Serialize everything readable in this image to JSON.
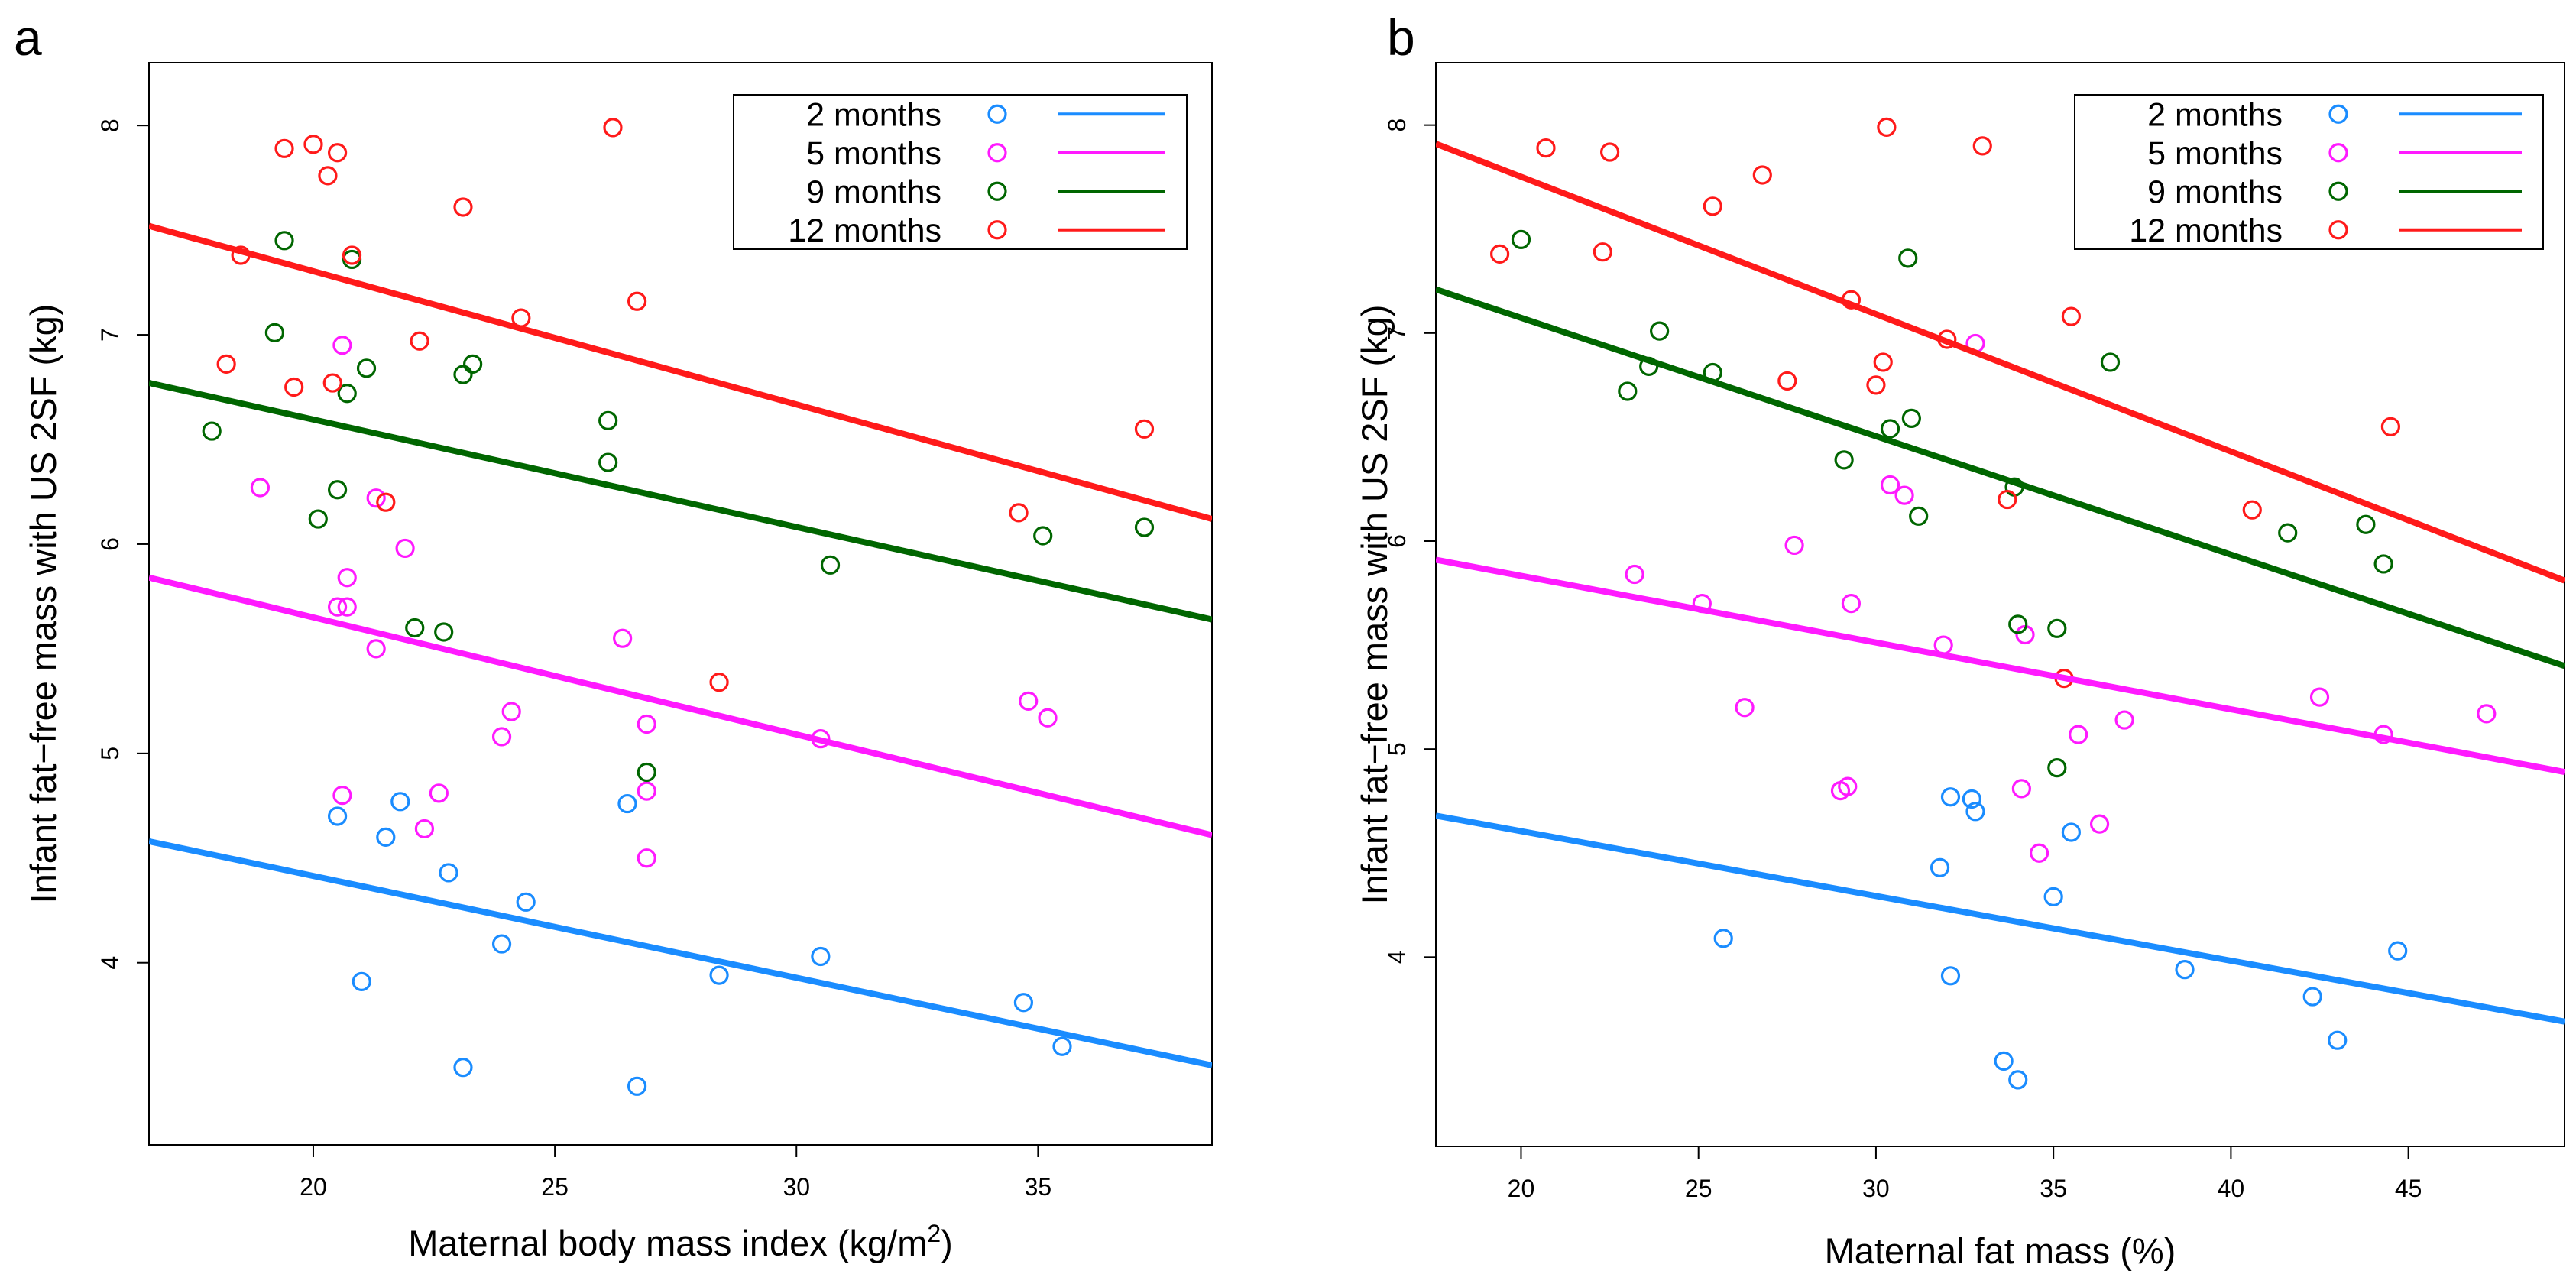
{
  "chart_data": [
    {
      "type": "scatter",
      "panel_label": "a",
      "xlabel": "Maternal body mass index (kg/m",
      "xlabel_sup": "2",
      "xlabel_end": ")",
      "ylabel": "Infant fat−free mass with US 2SF (kg)",
      "xlim": [
        16.6,
        38.6
      ],
      "ylim": [
        3.13,
        8.3
      ],
      "xticks": [
        20,
        25,
        30,
        35
      ],
      "yticks": [
        4,
        5,
        6,
        7,
        8
      ],
      "legend_position": "top-right",
      "series": [
        {
          "name": "2 months",
          "color": "#1a8cff",
          "line": {
            "x": [
              16.6,
              38.6
            ],
            "y": [
              4.58,
              3.51
            ]
          },
          "points": [
            [
              20.5,
              4.7
            ],
            [
              21.0,
              3.91
            ],
            [
              21.5,
              4.6
            ],
            [
              21.8,
              4.77
            ],
            [
              22.8,
              4.43
            ],
            [
              23.1,
              3.5
            ],
            [
              23.9,
              4.09
            ],
            [
              24.4,
              4.29
            ],
            [
              26.5,
              4.76
            ],
            [
              26.7,
              3.41
            ],
            [
              28.4,
              3.94
            ],
            [
              30.5,
              4.03
            ],
            [
              34.7,
              3.81
            ],
            [
              35.5,
              3.6
            ]
          ]
        },
        {
          "name": "5 months",
          "color": "#ff1aff",
          "line": {
            "x": [
              16.6,
              38.6
            ],
            "y": [
              5.84,
              4.61
            ]
          },
          "points": [
            [
              18.9,
              6.27
            ],
            [
              20.5,
              5.7
            ],
            [
              20.6,
              4.8
            ],
            [
              20.6,
              6.95
            ],
            [
              20.7,
              5.7
            ],
            [
              20.7,
              5.84
            ],
            [
              21.3,
              5.5
            ],
            [
              21.3,
              6.22
            ],
            [
              21.9,
              5.98
            ],
            [
              22.3,
              4.64
            ],
            [
              22.6,
              4.81
            ],
            [
              23.9,
              5.08
            ],
            [
              24.1,
              5.2
            ],
            [
              26.4,
              5.55
            ],
            [
              26.9,
              4.5
            ],
            [
              26.9,
              4.82
            ],
            [
              26.9,
              5.14
            ],
            [
              30.5,
              5.07
            ],
            [
              34.8,
              5.25
            ],
            [
              35.2,
              5.17
            ]
          ]
        },
        {
          "name": "9 months",
          "color": "#006600",
          "line": {
            "x": [
              16.6,
              38.6
            ],
            "y": [
              6.77,
              5.64
            ]
          },
          "points": [
            [
              17.9,
              6.54
            ],
            [
              19.2,
              7.01
            ],
            [
              19.4,
              7.45
            ],
            [
              20.1,
              6.12
            ],
            [
              20.5,
              6.26
            ],
            [
              20.7,
              6.72
            ],
            [
              20.8,
              7.36
            ],
            [
              21.1,
              6.84
            ],
            [
              22.1,
              5.6
            ],
            [
              22.7,
              5.58
            ],
            [
              23.1,
              6.81
            ],
            [
              23.3,
              6.86
            ],
            [
              26.1,
              6.39
            ],
            [
              26.1,
              6.59
            ],
            [
              26.9,
              4.91
            ],
            [
              30.7,
              5.9
            ],
            [
              35.1,
              6.04
            ],
            [
              37.2,
              6.08
            ]
          ]
        },
        {
          "name": "12 months",
          "color": "#ff1a1a",
          "line": {
            "x": [
              16.6,
              38.6
            ],
            "y": [
              7.52,
              6.12
            ]
          },
          "points": [
            [
              18.2,
              6.86
            ],
            [
              18.5,
              7.38
            ],
            [
              19.4,
              7.89
            ],
            [
              19.6,
              6.75
            ],
            [
              20.0,
              7.91
            ],
            [
              20.3,
              7.76
            ],
            [
              20.4,
              6.77
            ],
            [
              20.5,
              7.87
            ],
            [
              20.8,
              7.38
            ],
            [
              21.5,
              6.2
            ],
            [
              22.2,
              6.97
            ],
            [
              23.1,
              7.61
            ],
            [
              24.3,
              7.08
            ],
            [
              26.2,
              7.99
            ],
            [
              26.7,
              7.16
            ],
            [
              28.4,
              5.34
            ],
            [
              34.6,
              6.15
            ],
            [
              37.2,
              6.55
            ]
          ]
        }
      ]
    },
    {
      "type": "scatter",
      "panel_label": "b",
      "xlabel": "Maternal fat mass (%)",
      "ylabel": "Infant fat−free mass with US 2SF (kg)",
      "xlim": [
        17.6,
        49.4
      ],
      "ylim": [
        3.09,
        8.3
      ],
      "xticks": [
        20,
        25,
        30,
        35,
        40,
        45
      ],
      "yticks": [
        4,
        5,
        6,
        7,
        8
      ],
      "legend_position": "top-right",
      "series": [
        {
          "name": "2 months",
          "color": "#1a8cff",
          "line": {
            "x": [
              17.6,
              49.4
            ],
            "y": [
              4.68,
              3.69
            ]
          },
          "points": [
            [
              25.7,
              4.09
            ],
            [
              31.8,
              4.43
            ],
            [
              32.1,
              4.77
            ],
            [
              32.1,
              3.91
            ],
            [
              32.7,
              4.76
            ],
            [
              32.8,
              4.7
            ],
            [
              33.6,
              3.5
            ],
            [
              34.0,
              3.41
            ],
            [
              35.0,
              4.29
            ],
            [
              35.5,
              4.6
            ],
            [
              38.7,
              3.94
            ],
            [
              42.3,
              3.81
            ],
            [
              43.0,
              3.6
            ],
            [
              44.7,
              4.03
            ]
          ]
        },
        {
          "name": "5 months",
          "color": "#ff1aff",
          "line": {
            "x": [
              17.6,
              49.4
            ],
            "y": [
              5.91,
              4.89
            ]
          },
          "points": [
            [
              23.2,
              5.84
            ],
            [
              25.1,
              5.7
            ],
            [
              26.3,
              5.2
            ],
            [
              27.7,
              5.98
            ],
            [
              29.0,
              4.8
            ],
            [
              29.2,
              4.82
            ],
            [
              29.3,
              5.7
            ],
            [
              30.4,
              6.27
            ],
            [
              30.8,
              6.22
            ],
            [
              31.9,
              5.5
            ],
            [
              32.8,
              6.95
            ],
            [
              34.1,
              4.81
            ],
            [
              34.2,
              5.55
            ],
            [
              34.6,
              4.5
            ],
            [
              35.7,
              5.07
            ],
            [
              36.3,
              4.64
            ],
            [
              37.0,
              5.14
            ],
            [
              42.5,
              5.25
            ],
            [
              44.3,
              5.07
            ],
            [
              47.2,
              5.17
            ]
          ]
        },
        {
          "name": "9 months",
          "color": "#006600",
          "line": {
            "x": [
              17.6,
              49.4
            ],
            "y": [
              7.21,
              5.4
            ]
          },
          "points": [
            [
              20.0,
              7.45
            ],
            [
              23.0,
              6.72
            ],
            [
              23.6,
              6.84
            ],
            [
              23.9,
              7.01
            ],
            [
              25.4,
              6.81
            ],
            [
              29.1,
              6.39
            ],
            [
              30.4,
              6.54
            ],
            [
              30.9,
              7.36
            ],
            [
              31.0,
              6.59
            ],
            [
              31.2,
              6.12
            ],
            [
              33.9,
              6.26
            ],
            [
              34.0,
              5.6
            ],
            [
              35.1,
              4.91
            ],
            [
              35.1,
              5.58
            ],
            [
              36.6,
              6.86
            ],
            [
              41.6,
              6.04
            ],
            [
              43.8,
              6.08
            ],
            [
              44.3,
              5.89
            ]
          ]
        },
        {
          "name": "12 months",
          "color": "#ff1a1a",
          "line": {
            "x": [
              17.6,
              49.4
            ],
            "y": [
              7.91,
              5.81
            ]
          },
          "points": [
            [
              19.4,
              7.38
            ],
            [
              20.7,
              7.89
            ],
            [
              22.3,
              7.39
            ],
            [
              22.5,
              7.87
            ],
            [
              25.4,
              7.61
            ],
            [
              26.8,
              7.76
            ],
            [
              27.5,
              6.77
            ],
            [
              29.3,
              7.16
            ],
            [
              30.0,
              6.75
            ],
            [
              30.2,
              6.86
            ],
            [
              30.3,
              7.99
            ],
            [
              32.0,
              6.97
            ],
            [
              33.0,
              7.9
            ],
            [
              33.7,
              6.2
            ],
            [
              35.3,
              5.34
            ],
            [
              35.5,
              7.08
            ],
            [
              40.6,
              6.15
            ],
            [
              44.5,
              6.55
            ]
          ]
        }
      ]
    }
  ]
}
